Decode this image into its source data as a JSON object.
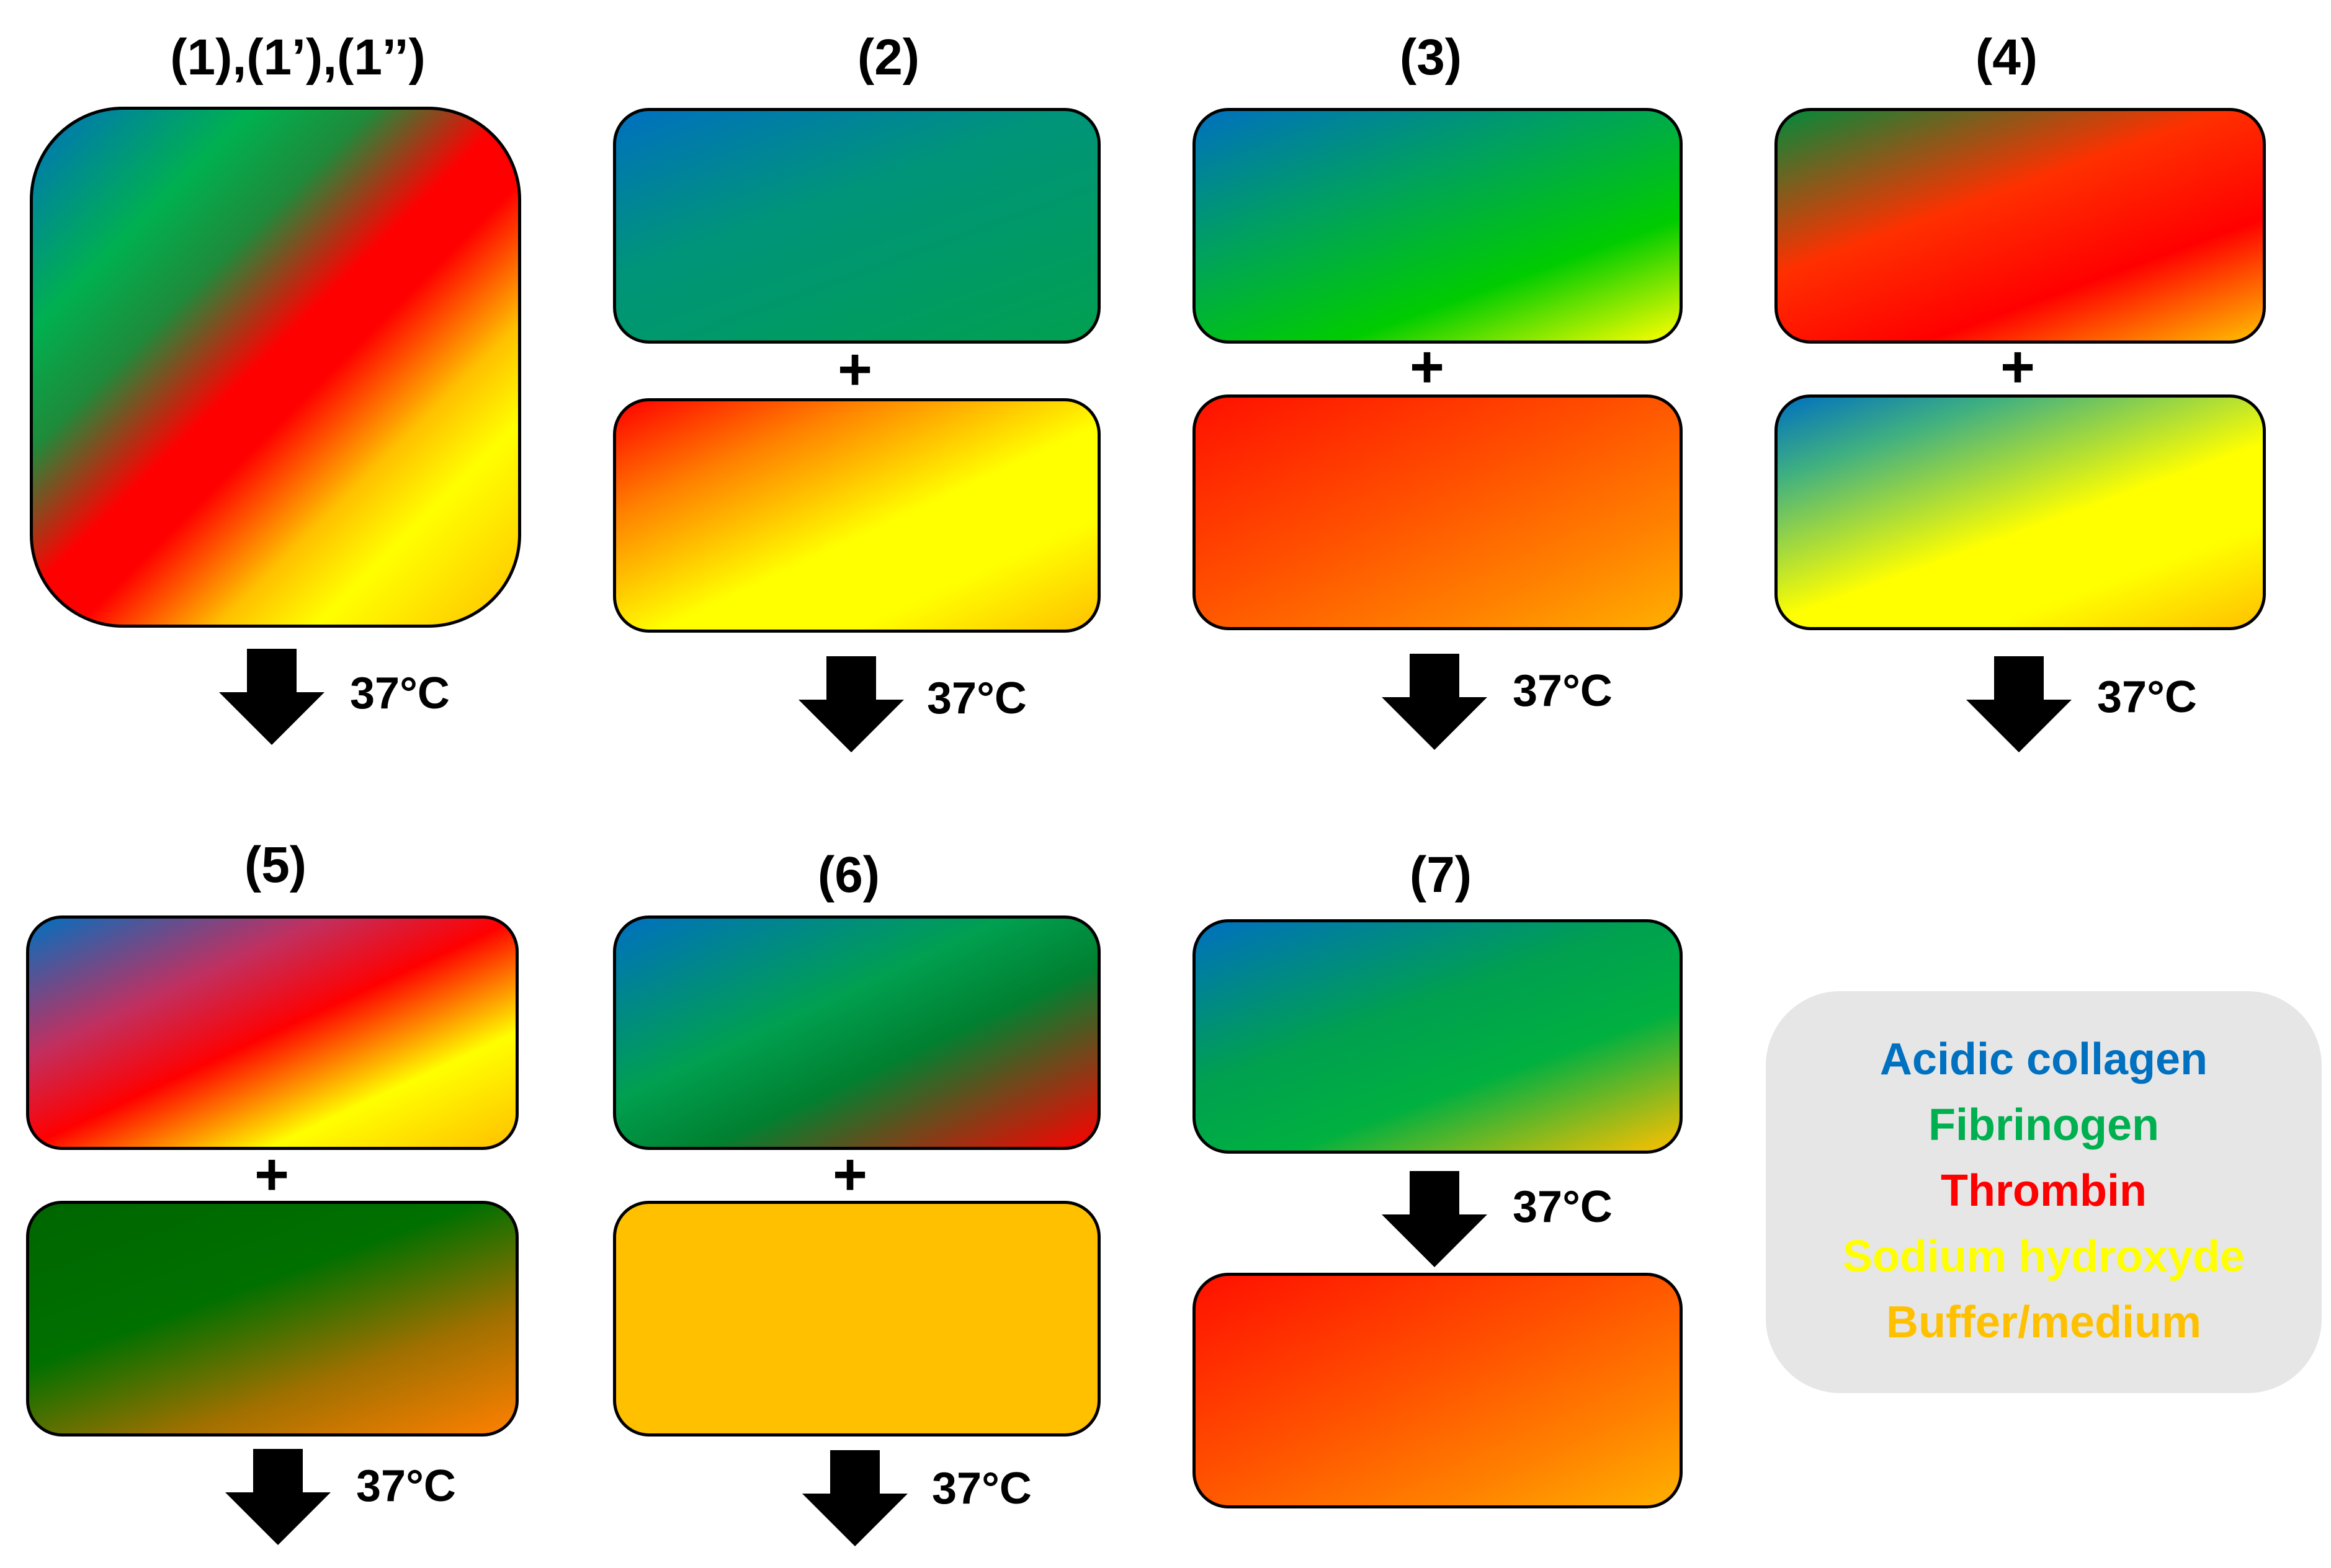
{
  "panels": {
    "p1": {
      "title": "(1),(1’),(1’’)",
      "temp": "37°C"
    },
    "p2": {
      "title": "(2)",
      "plus": "+",
      "temp": "37°C"
    },
    "p3": {
      "title": "(3)",
      "plus": "+",
      "temp": "37°C"
    },
    "p4": {
      "title": "(4)",
      "plus": "+",
      "temp": "37°C"
    },
    "p5": {
      "title": "(5)",
      "plus": "+",
      "temp": "37°C"
    },
    "p6": {
      "title": "(6)",
      "plus": "+",
      "temp": "37°C"
    },
    "p7": {
      "title": "(7)",
      "temp": "37°C"
    }
  },
  "legend": {
    "items": [
      {
        "label": "Acidic collagen",
        "color": "#0070c0"
      },
      {
        "label": "Fibrinogen",
        "color": "#00b050"
      },
      {
        "label": "Thrombin",
        "color": "#ff0000"
      },
      {
        "label": "Sodium hydroxyde",
        "color": "#ffff00"
      },
      {
        "label": "Buffer/medium",
        "color": "#ffc000"
      }
    ]
  }
}
